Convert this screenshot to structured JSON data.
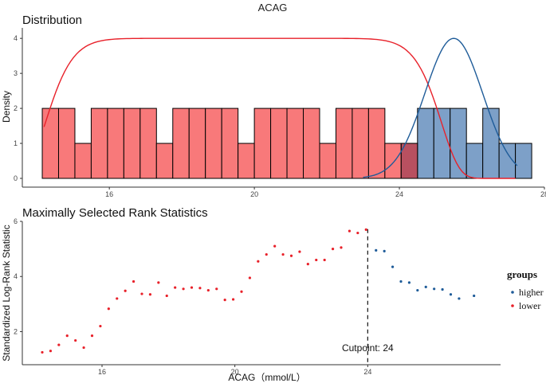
{
  "figure": {
    "title": "ACAG"
  },
  "chart_data": [
    {
      "type": "histogram",
      "panel_title": "Distribution",
      "ylabel": "Density",
      "xlabel": "",
      "xlim": [
        13.6,
        28.0
      ],
      "ylim": [
        -0.25,
        4.3
      ],
      "x_ticks": [
        16,
        20,
        24,
        28
      ],
      "x_tick_labels": [
        "16",
        "20",
        "24",
        "28"
      ],
      "y_ticks": [
        0,
        1,
        2,
        3,
        4
      ],
      "y_tick_labels": [
        "0",
        "1",
        "2",
        "3",
        "4"
      ],
      "bin_width": 0.45,
      "series": [
        {
          "name": "lower",
          "color": "#f8797a",
          "bins": [
            {
              "x0": 14.15,
              "count": 2
            },
            {
              "x0": 14.6,
              "count": 2
            },
            {
              "x0": 15.05,
              "count": 1
            },
            {
              "x0": 15.5,
              "count": 2
            },
            {
              "x0": 15.95,
              "count": 2
            },
            {
              "x0": 16.4,
              "count": 2
            },
            {
              "x0": 16.85,
              "count": 2
            },
            {
              "x0": 17.3,
              "count": 1
            },
            {
              "x0": 17.75,
              "count": 2
            },
            {
              "x0": 18.2,
              "count": 2
            },
            {
              "x0": 18.65,
              "count": 2
            },
            {
              "x0": 19.1,
              "count": 2
            },
            {
              "x0": 19.55,
              "count": 1
            },
            {
              "x0": 20.0,
              "count": 2
            },
            {
              "x0": 20.45,
              "count": 2
            },
            {
              "x0": 20.9,
              "count": 2
            },
            {
              "x0": 21.35,
              "count": 2
            },
            {
              "x0": 21.8,
              "count": 1
            },
            {
              "x0": 22.25,
              "count": 2
            },
            {
              "x0": 22.7,
              "count": 2
            },
            {
              "x0": 23.15,
              "count": 2
            },
            {
              "x0": 23.6,
              "count": 1
            },
            {
              "x0": 24.05,
              "count": 1
            }
          ]
        },
        {
          "name": "higher",
          "color": "#7da0c8",
          "bins": [
            {
              "x0": 24.5,
              "count": 2
            },
            {
              "x0": 24.95,
              "count": 2
            },
            {
              "x0": 25.4,
              "count": 2
            },
            {
              "x0": 25.85,
              "count": 1
            },
            {
              "x0": 26.3,
              "count": 2
            },
            {
              "x0": 26.75,
              "count": 1
            },
            {
              "x0": 27.2,
              "count": 1
            }
          ]
        }
      ],
      "overlap_bin": {
        "x0": 24.05,
        "count": 1,
        "color": "#b85060"
      },
      "curves": [
        {
          "name": "lower",
          "color": "#e8212a",
          "mu": 19.7,
          "sigma": 5.5,
          "peak": 4.0,
          "p": 6,
          "x_min": 14.2,
          "x_max": 27.2
        },
        {
          "name": "higher",
          "color": "#1f5c99",
          "mu": 25.5,
          "sigma": 1.13,
          "peak": 4.0,
          "p": 1,
          "x_min": 23.0,
          "x_max": 27.25
        }
      ]
    },
    {
      "type": "scatter",
      "panel_title": "Maximally Selected Rank Statistics",
      "xlabel": "ACAG（mmol/L）",
      "ylabel": "Standardized Log-Rank Statistic",
      "xlim": [
        13.6,
        28.0
      ],
      "ylim": [
        0.8,
        6.0
      ],
      "x_ticks": [
        16,
        20,
        24
      ],
      "x_tick_labels": [
        "16",
        "20",
        "24"
      ],
      "y_ticks": [
        2,
        4,
        6
      ],
      "y_tick_labels": [
        "2",
        "4",
        "6"
      ],
      "cutpoint": 24,
      "cutpoint_label": "Cutpoint: 24",
      "series": [
        {
          "name": "lower",
          "color": "#e8212a",
          "x": [
            14.2,
            14.45,
            14.7,
            14.95,
            15.2,
            15.45,
            15.7,
            15.95,
            16.2,
            16.45,
            16.7,
            16.95,
            17.2,
            17.45,
            17.7,
            17.95,
            18.2,
            18.45,
            18.7,
            18.95,
            19.2,
            19.45,
            19.7,
            19.95,
            20.2,
            20.45,
            20.7,
            20.95,
            21.2,
            21.45,
            21.7,
            21.95,
            22.2,
            22.45,
            22.7,
            22.95,
            23.2,
            23.45,
            23.7,
            23.95
          ],
          "y": [
            1.25,
            1.3,
            1.52,
            1.85,
            1.68,
            1.42,
            1.85,
            2.2,
            2.83,
            3.2,
            3.48,
            3.82,
            3.37,
            3.35,
            3.78,
            3.3,
            3.6,
            3.55,
            3.6,
            3.58,
            3.5,
            3.55,
            3.15,
            3.17,
            3.45,
            3.95,
            4.55,
            4.8,
            5.1,
            4.8,
            4.75,
            4.9,
            4.45,
            4.6,
            4.6,
            5.0,
            5.05,
            5.65,
            5.58,
            5.7
          ]
        },
        {
          "name": "higher",
          "color": "#1f5c99",
          "x": [
            24.25,
            24.5,
            24.75,
            25.0,
            25.25,
            25.5,
            25.75,
            26.0,
            26.25,
            26.5,
            26.75,
            27.2
          ],
          "y": [
            4.95,
            4.92,
            4.35,
            3.82,
            3.78,
            3.5,
            3.62,
            3.55,
            3.53,
            3.35,
            3.2,
            3.3
          ]
        }
      ]
    }
  ],
  "legend": {
    "title": "groups",
    "items": [
      {
        "label": "higher",
        "color": "#1f5c99"
      },
      {
        "label": "lower",
        "color": "#e8212a"
      }
    ]
  }
}
